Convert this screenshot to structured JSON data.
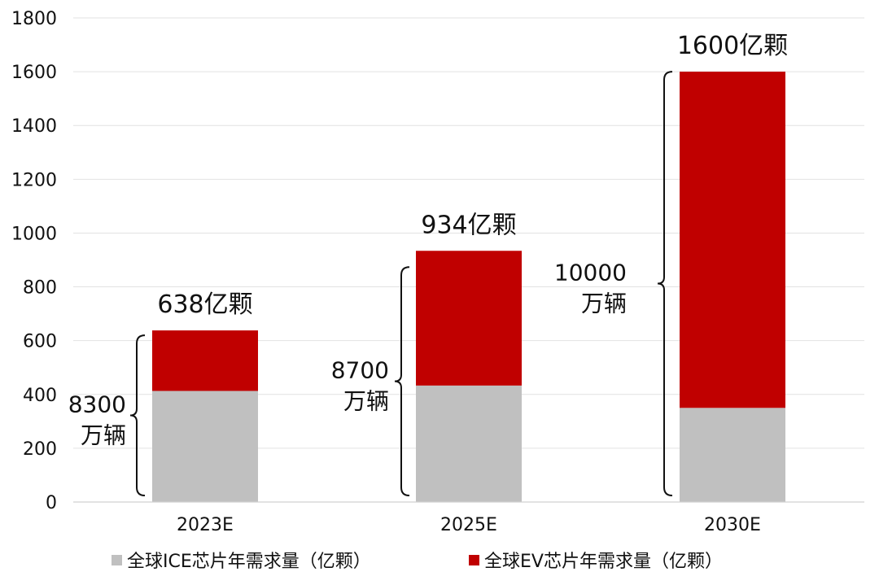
{
  "chart_data": {
    "type": "bar",
    "stacked": true,
    "categories": [
      "2023E",
      "2025E",
      "2030E"
    ],
    "series": [
      {
        "name": "全球ICE芯片年需求量（亿颗）",
        "values": [
          413,
          433,
          350
        ],
        "color": "#c0c0c0"
      },
      {
        "name": "全球EV芯片年需求量（亿颗）",
        "values": [
          225,
          501,
          1250
        ],
        "color": "#c00000"
      }
    ],
    "total_labels": [
      "638亿颗",
      "934亿颗",
      "1600亿颗"
    ],
    "bracket_labels": [
      {
        "line1": "8300",
        "line2": "万辆"
      },
      {
        "line1": "8700",
        "line2": "万辆"
      },
      {
        "line1": "10000",
        "line2": "万辆"
      }
    ],
    "ylim": [
      0,
      1800
    ],
    "yticks": [
      0,
      200,
      400,
      600,
      800,
      1000,
      1200,
      1400,
      1600,
      1800
    ],
    "grid": true,
    "legend_position": "bottom",
    "title": "",
    "xlabel": "",
    "ylabel": ""
  }
}
